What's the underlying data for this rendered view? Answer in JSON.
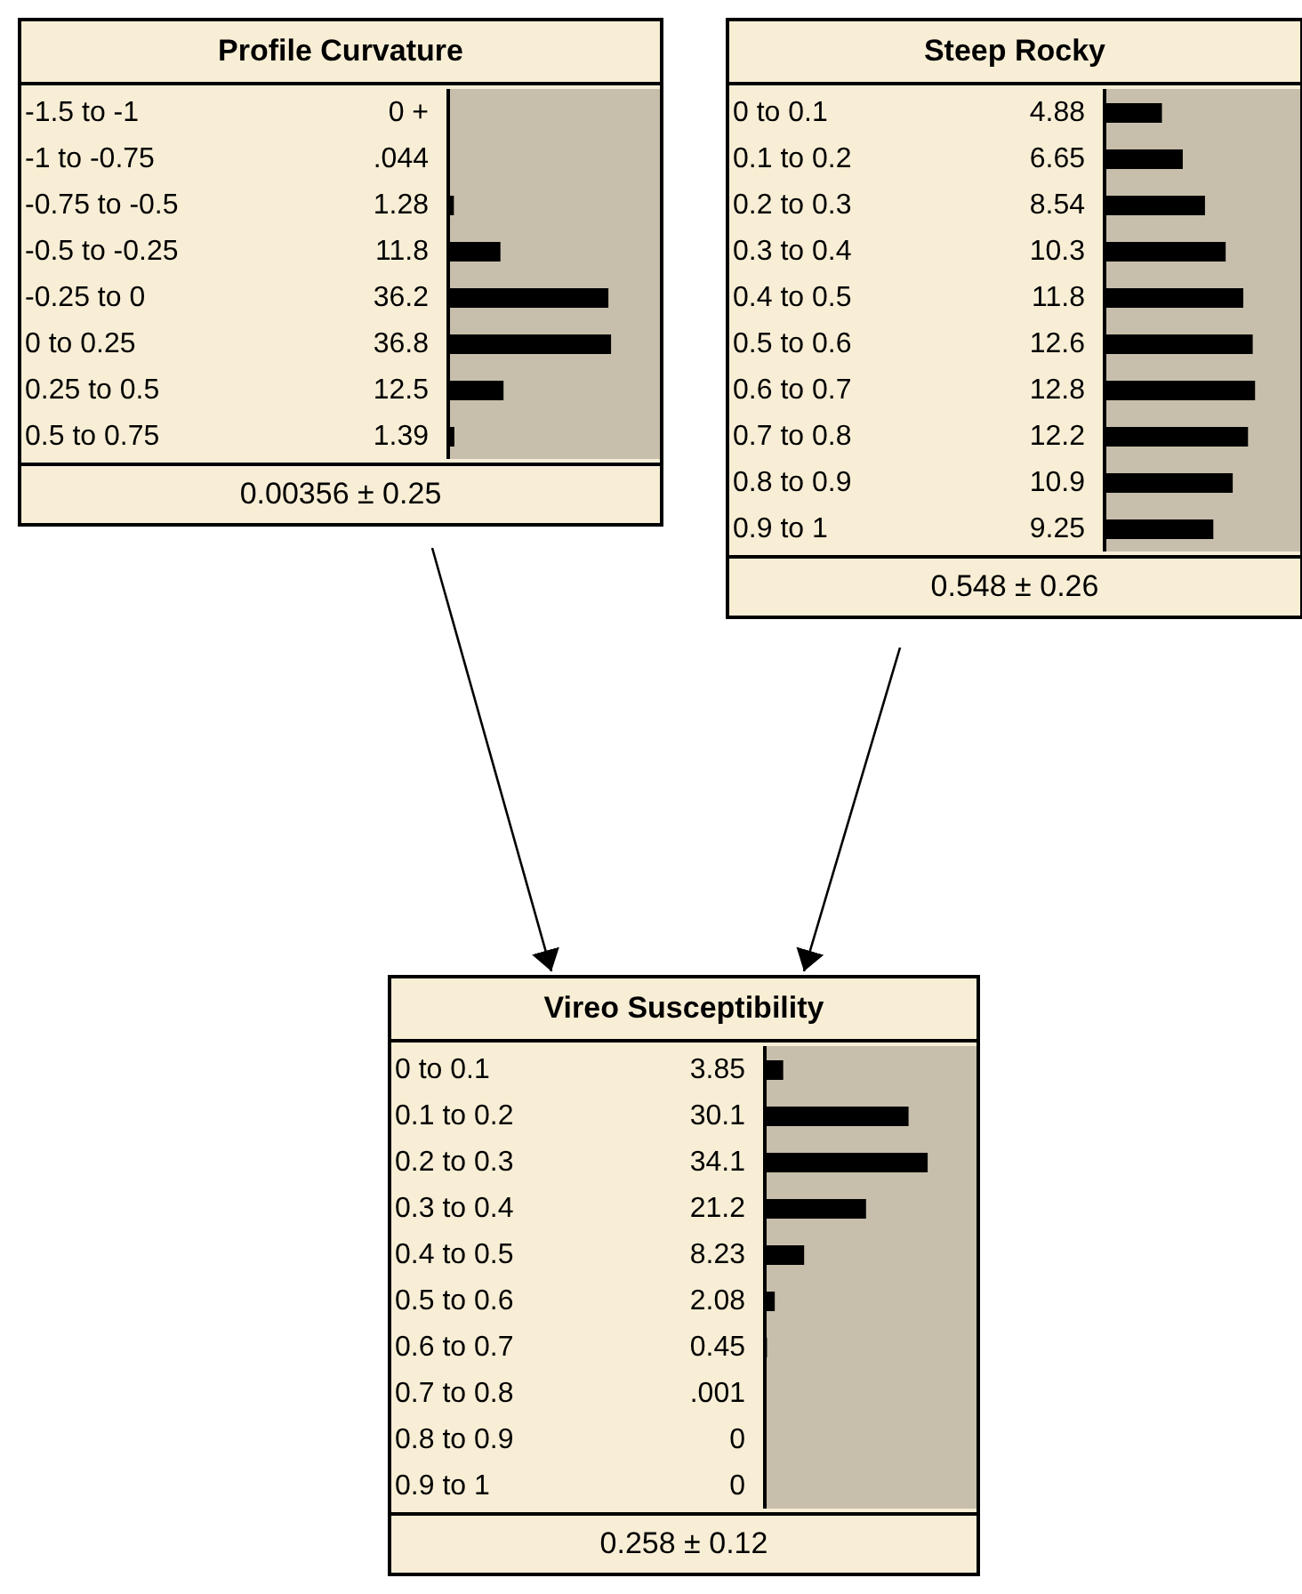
{
  "chart_data": [
    {
      "type": "bar",
      "orientation": "horizontal",
      "title": "Profile Curvature",
      "categories": [
        "-1.5 to -1",
        "-1 to -0.75",
        "-0.75 to -0.5",
        "-0.5 to -0.25",
        "-0.25 to 0",
        "0 to 0.25",
        "0.25 to 0.5",
        "0.5 to 0.75"
      ],
      "values": [
        0,
        0.044,
        1.28,
        11.8,
        36.2,
        36.8,
        12.5,
        1.39
      ],
      "value_labels": [
        "0 +",
        ".044",
        "1.28",
        "11.8",
        "36.2",
        "36.8",
        "12.5",
        "1.39"
      ],
      "color": "#000000",
      "tick_labels": "y",
      "annotations": [
        "0.00356 ± 0.25"
      ]
    },
    {
      "type": "bar",
      "orientation": "horizontal",
      "title": "Steep Rocky",
      "categories": [
        "0 to 0.1",
        "0.1 to 0.2",
        "0.2 to 0.3",
        "0.3 to 0.4",
        "0.4 to 0.5",
        "0.5 to 0.6",
        "0.6 to 0.7",
        "0.7 to 0.8",
        "0.8 to 0.9",
        "0.9 to 1"
      ],
      "values": [
        4.88,
        6.65,
        8.54,
        10.3,
        11.8,
        12.6,
        12.8,
        12.2,
        10.9,
        9.25
      ],
      "value_labels": [
        "4.88",
        "6.65",
        "8.54",
        "10.3",
        "11.8",
        "12.6",
        "12.8",
        "12.2",
        "10.9",
        "9.25"
      ],
      "color": "#000000",
      "tick_labels": "y",
      "annotations": [
        "0.548 ± 0.26"
      ]
    },
    {
      "type": "bar",
      "orientation": "horizontal",
      "title": "Vireo Susceptibility",
      "categories": [
        "0 to 0.1",
        "0.1 to 0.2",
        "0.2 to 0.3",
        "0.3 to 0.4",
        "0.4 to 0.5",
        "0.5 to 0.6",
        "0.6 to 0.7",
        "0.7 to 0.8",
        "0.8 to 0.9",
        "0.9 to 1"
      ],
      "values": [
        3.85,
        30.1,
        34.1,
        21.2,
        8.23,
        2.08,
        0.45,
        0.001,
        0,
        0
      ],
      "value_labels": [
        "3.85",
        "30.1",
        "34.1",
        "21.2",
        "8.23",
        "2.08",
        "0.45",
        ".001",
        "0",
        "0"
      ],
      "color": "#000000",
      "tick_labels": "y",
      "annotations": [
        "0.258 ± 0.12"
      ]
    }
  ]
}
